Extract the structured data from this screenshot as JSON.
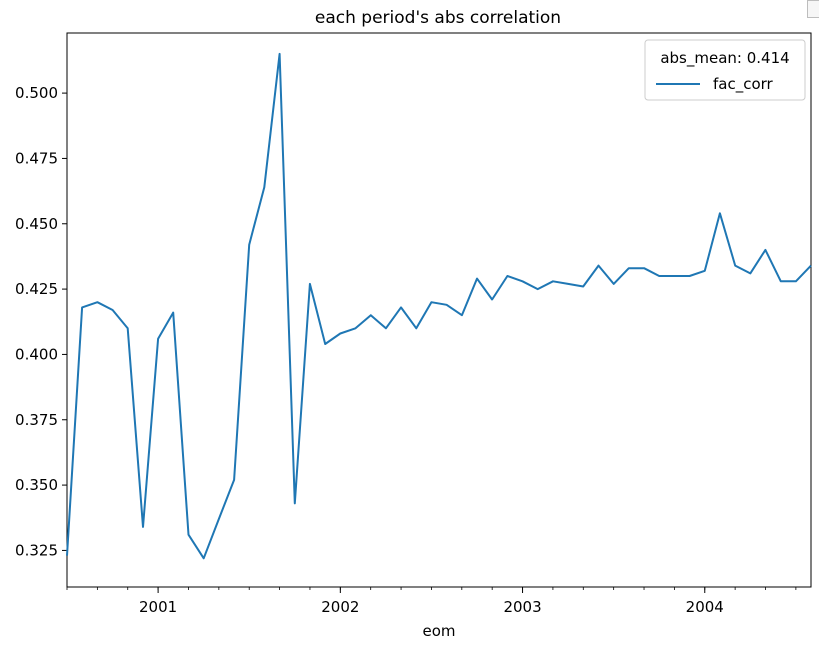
{
  "chart_data": {
    "type": "line",
    "title": "each period's abs correlation",
    "xlabel": "eom",
    "ylabel": "",
    "xlim": [
      2000.5,
      2004.583
    ],
    "ylim": [
      0.311,
      0.523
    ],
    "x_ticks": [
      {
        "value": 2001,
        "label": "2001"
      },
      {
        "value": 2002,
        "label": "2002"
      },
      {
        "value": 2003,
        "label": "2003"
      },
      {
        "value": 2004,
        "label": "2004"
      }
    ],
    "y_ticks": [
      {
        "value": 0.325,
        "label": "0.325"
      },
      {
        "value": 0.35,
        "label": "0.350"
      },
      {
        "value": 0.375,
        "label": "0.375"
      },
      {
        "value": 0.4,
        "label": "0.400"
      },
      {
        "value": 0.425,
        "label": "0.425"
      },
      {
        "value": 0.45,
        "label": "0.450"
      },
      {
        "value": 0.475,
        "label": "0.475"
      },
      {
        "value": 0.5,
        "label": "0.500"
      }
    ],
    "legend": {
      "title": "abs_mean: 0.414",
      "placement": "top-right"
    },
    "grid": false,
    "series": [
      {
        "name": "fac_corr",
        "color": "#1f77b4",
        "x": [
          2000.5,
          2000.583,
          2000.667,
          2000.75,
          2000.833,
          2000.917,
          2001.0,
          2001.083,
          2001.167,
          2001.25,
          2001.333,
          2001.417,
          2001.5,
          2001.583,
          2001.667,
          2001.75,
          2001.833,
          2001.917,
          2002.0,
          2002.083,
          2002.167,
          2002.25,
          2002.333,
          2002.417,
          2002.5,
          2002.583,
          2002.667,
          2002.75,
          2002.833,
          2002.917,
          2003.0,
          2003.083,
          2003.167,
          2003.25,
          2003.333,
          2003.417,
          2003.5,
          2003.583,
          2003.667,
          2003.75,
          2003.833,
          2003.917,
          2004.0,
          2004.083,
          2004.167,
          2004.25,
          2004.333,
          2004.417,
          2004.5,
          2004.583
        ],
        "values": [
          0.323,
          0.418,
          0.42,
          0.417,
          0.41,
          0.334,
          0.406,
          0.416,
          0.331,
          0.322,
          0.337,
          0.352,
          0.442,
          0.464,
          0.515,
          0.343,
          0.427,
          0.404,
          0.408,
          0.41,
          0.415,
          0.41,
          0.418,
          0.41,
          0.42,
          0.419,
          0.415,
          0.429,
          0.421,
          0.43,
          0.428,
          0.425,
          0.428,
          0.427,
          0.426,
          0.434,
          0.427,
          0.433,
          0.433,
          0.43,
          0.43,
          0.43,
          0.432,
          0.454,
          0.434,
          0.431,
          0.44,
          0.428,
          0.428,
          0.434
        ]
      }
    ]
  }
}
